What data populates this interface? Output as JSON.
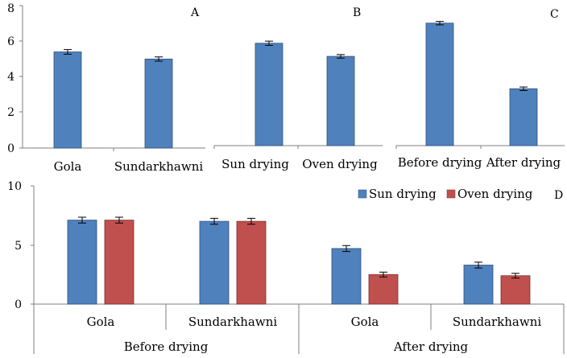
{
  "chart_data": [
    {
      "panel": "A",
      "type": "bar",
      "categories": [
        "Gola",
        "Sundarkhawni"
      ],
      "values": [
        5.4,
        5.0
      ],
      "errors": [
        0.13,
        0.12
      ],
      "ylim": [
        0,
        8
      ],
      "yticks": [
        "0",
        "2",
        "4",
        "6",
        "8"
      ],
      "color": "#4f81bd"
    },
    {
      "panel": "B",
      "type": "bar",
      "categories": [
        "Sun drying",
        "Oven drying"
      ],
      "values": [
        5.85,
        5.1
      ],
      "errors": [
        0.12,
        0.1
      ],
      "ylim": [
        0,
        8
      ],
      "color": "#4f81bd"
    },
    {
      "panel": "C",
      "type": "bar",
      "categories": [
        "Before drying",
        "After drying"
      ],
      "values": [
        7.0,
        3.25
      ],
      "errors": [
        0.1,
        0.1
      ],
      "ylim": [
        0,
        8
      ],
      "color": "#4f81bd"
    },
    {
      "panel": "D",
      "type": "bar",
      "groups": [
        "Before drying",
        "After drying"
      ],
      "categories": [
        "Gola",
        "Sundarkhawni",
        "Gola",
        "Sundarkhawni"
      ],
      "series": [
        {
          "name": "Sun drying",
          "color": "#4f81bd",
          "values": [
            7.1,
            7.0,
            4.7,
            3.3
          ],
          "errors": [
            0.25,
            0.25,
            0.25,
            0.25
          ]
        },
        {
          "name": "Oven drying",
          "color": "#c0504d",
          "values": [
            7.1,
            7.0,
            2.5,
            2.4
          ],
          "errors": [
            0.25,
            0.25,
            0.2,
            0.2
          ]
        }
      ],
      "ylim": [
        0,
        10
      ],
      "yticks": [
        "0",
        "5",
        "10"
      ],
      "legend": "top-right"
    }
  ]
}
